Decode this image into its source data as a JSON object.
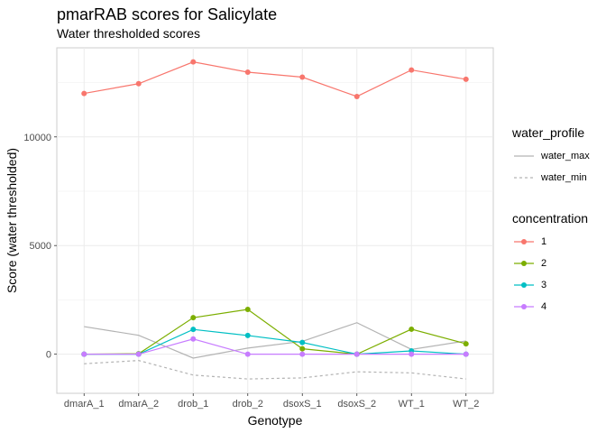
{
  "title": "pmarRAB scores for Salicylate",
  "subtitle": "Water thresholded scores",
  "chart_data": {
    "type": "line",
    "categories": [
      "dmarA_1",
      "dmarA_2",
      "drob_1",
      "drob_2",
      "dsoxS_1",
      "dsoxS_2",
      "WT_1",
      "WT_2"
    ],
    "xlabel": "Genotype",
    "ylabel": "Score (water thresholded)",
    "ylim": [
      -1800,
      14100
    ],
    "yticks": [
      0,
      5000,
      10000
    ],
    "grid": true,
    "legend_position": "right",
    "series": [
      {
        "name": "1",
        "color": "#F8766D",
        "values": [
          12000,
          12450,
          13450,
          12980,
          12750,
          11860,
          13080,
          12650
        ]
      },
      {
        "name": "2",
        "color": "#7CAE00",
        "values": [
          0,
          20,
          1680,
          2060,
          250,
          0,
          1150,
          480
        ]
      },
      {
        "name": "3",
        "color": "#00BFC4",
        "values": [
          0,
          0,
          1140,
          860,
          540,
          0,
          150,
          0
        ]
      },
      {
        "name": "4",
        "color": "#C77CFF",
        "values": [
          0,
          0,
          700,
          0,
          0,
          0,
          0,
          0
        ]
      }
    ],
    "water_series": [
      {
        "name": "water_max",
        "color": "#b3b3b3",
        "dash": "solid",
        "values": [
          1270,
          870,
          -180,
          280,
          590,
          1450,
          220,
          610
        ]
      },
      {
        "name": "water_min",
        "color": "#b3b3b3",
        "dash": "dashed",
        "values": [
          -440,
          -290,
          -960,
          -1140,
          -1090,
          -810,
          -860,
          -1140
        ]
      }
    ],
    "legend_groups": [
      {
        "title": "water_profile",
        "items": [
          "water_max",
          "water_min"
        ]
      },
      {
        "title": "concentration",
        "items": [
          "1",
          "2",
          "3",
          "4"
        ]
      }
    ]
  }
}
